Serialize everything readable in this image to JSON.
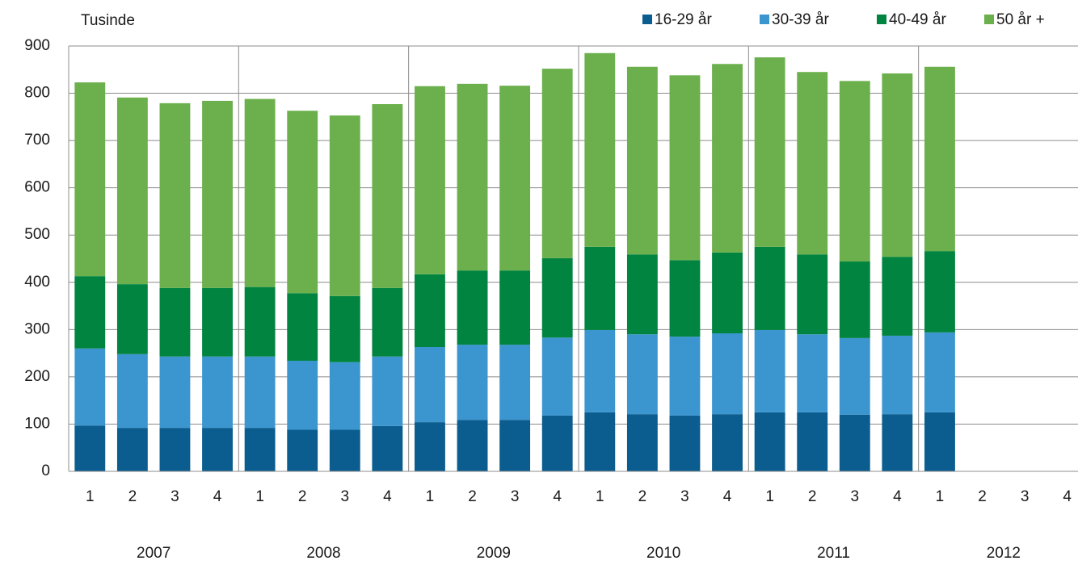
{
  "chart_data": {
    "type": "stacked_bar",
    "y_label": "Tusinde",
    "categories": [
      "1",
      "2",
      "3",
      "4",
      "1",
      "2",
      "3",
      "4",
      "1",
      "2",
      "3",
      "4",
      "1",
      "2",
      "3",
      "4",
      "1",
      "2",
      "3",
      "4",
      "1",
      "2",
      "3",
      "4"
    ],
    "groups": [
      "2007",
      "2008",
      "2009",
      "2010",
      "2011",
      "2012"
    ],
    "series": [
      {
        "name": "16-29 år",
        "color": "#0a5d8e",
        "values": [
          97,
          92,
          92,
          92,
          92,
          88,
          88,
          96,
          104,
          109,
          109,
          118,
          125,
          121,
          118,
          121,
          125,
          125,
          120,
          121,
          125,
          null,
          null,
          null
        ]
      },
      {
        "name": "30-39 år",
        "color": "#3b96cf",
        "values": [
          163,
          156,
          151,
          151,
          151,
          146,
          143,
          147,
          159,
          159,
          159,
          165,
          174,
          169,
          167,
          171,
          174,
          165,
          162,
          166,
          169,
          null,
          null,
          null
        ]
      },
      {
        "name": "40-49 år",
        "color": "#00843f",
        "values": [
          153,
          148,
          145,
          145,
          147,
          143,
          140,
          145,
          154,
          157,
          157,
          168,
          176,
          169,
          162,
          171,
          176,
          169,
          162,
          167,
          172,
          null,
          null,
          null
        ]
      },
      {
        "name": "50 år +",
        "color": "#6cb04d",
        "values": [
          410,
          395,
          391,
          396,
          398,
          386,
          382,
          389,
          398,
          395,
          391,
          401,
          410,
          397,
          391,
          399,
          401,
          386,
          382,
          388,
          390,
          null,
          null,
          null
        ]
      }
    ],
    "ylim": [
      0,
      900
    ],
    "yticks": [
      0,
      100,
      200,
      300,
      400,
      500,
      600,
      700,
      800,
      900
    ],
    "grid": true,
    "legend": "top-right"
  }
}
